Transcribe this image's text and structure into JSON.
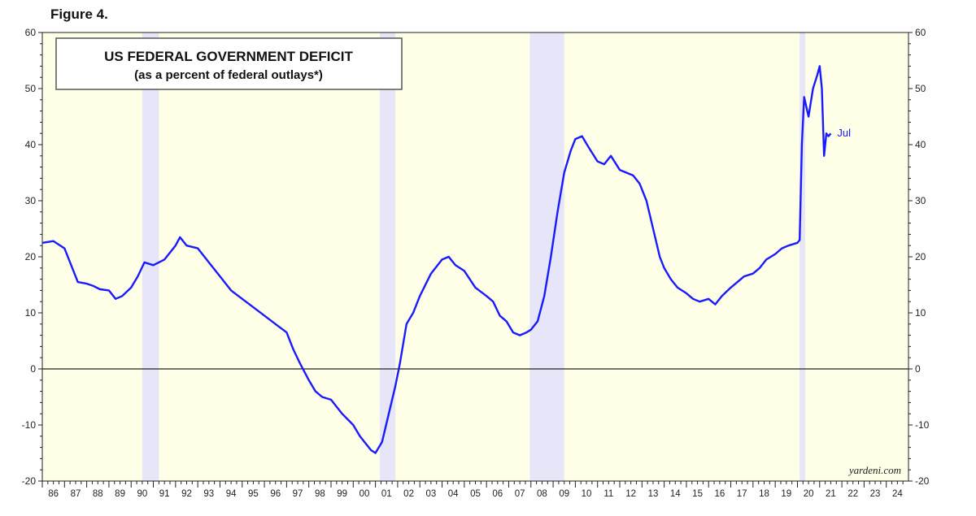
{
  "figure_label": "Figure 4.",
  "watermark": "yardeni.com",
  "chart_data": {
    "type": "line",
    "title": "US FEDERAL GOVERNMENT DEFICIT",
    "subtitle": "(as a percent of federal outlays*)",
    "ylim": [
      -20,
      60
    ],
    "y_ticks": [
      -20,
      -10,
      0,
      10,
      20,
      30,
      40,
      50,
      60
    ],
    "x_range": [
      1986,
      2025
    ],
    "x_tick_labels": [
      "86",
      "87",
      "88",
      "89",
      "90",
      "91",
      "92",
      "93",
      "94",
      "95",
      "96",
      "97",
      "98",
      "99",
      "00",
      "01",
      "02",
      "03",
      "04",
      "05",
      "06",
      "07",
      "08",
      "09",
      "10",
      "11",
      "12",
      "13",
      "14",
      "15",
      "16",
      "17",
      "18",
      "19",
      "20",
      "21",
      "22",
      "23",
      "24"
    ],
    "recessions": [
      [
        1990.5,
        1991.25
      ],
      [
        2001.2,
        2001.9
      ],
      [
        2007.95,
        2009.5
      ],
      [
        2020.1,
        2020.35
      ]
    ],
    "end_label": "Jul",
    "grid": false,
    "colors": {
      "background": "#ffffe8",
      "recession": "#e6e6f8",
      "line": "#1a1aff",
      "zero_line": "#222222"
    },
    "series": [
      {
        "x": [
          1986.0,
          1986.5,
          1987.0,
          1987.3,
          1987.6,
          1988.0,
          1988.3,
          1988.6,
          1989.0,
          1989.3,
          1989.6,
          1990.0,
          1990.3,
          1990.6,
          1991.0,
          1991.5,
          1992.0,
          1992.2,
          1992.5,
          1993.0,
          1993.5,
          1994.0,
          1994.5,
          1995.0,
          1995.5,
          1996.0,
          1996.5,
          1997.0,
          1997.3,
          1997.6,
          1998.0,
          1998.3,
          1998.6,
          1999.0,
          1999.5,
          2000.0,
          2000.3,
          2000.6,
          2000.8,
          2001.0,
          2001.3,
          2001.6,
          2001.9,
          2002.1,
          2002.4,
          2002.7,
          2003.0,
          2003.5,
          2004.0,
          2004.3,
          2004.6,
          2005.0,
          2005.5,
          2006.0,
          2006.3,
          2006.6,
          2006.9,
          2007.2,
          2007.5,
          2007.8,
          2008.0,
          2008.3,
          2008.6,
          2008.9,
          2009.2,
          2009.5,
          2009.8,
          2010.0,
          2010.3,
          2010.6,
          2011.0,
          2011.3,
          2011.6,
          2012.0,
          2012.3,
          2012.6,
          2012.9,
          2013.2,
          2013.5,
          2013.8,
          2014.0,
          2014.3,
          2014.6,
          2015.0,
          2015.3,
          2015.6,
          2016.0,
          2016.3,
          2016.6,
          2017.0,
          2017.3,
          2017.6,
          2018.0,
          2018.3,
          2018.6,
          2019.0,
          2019.3,
          2019.6,
          2020.0,
          2020.1,
          2020.2,
          2020.3,
          2020.5,
          2020.7,
          2020.9,
          2021.0,
          2021.1,
          2021.2,
          2021.3,
          2021.4,
          2021.5
        ],
        "values": [
          22.5,
          22.8,
          21.5,
          18.5,
          15.5,
          15.2,
          14.8,
          14.2,
          14.0,
          12.5,
          13.0,
          14.5,
          16.5,
          19.0,
          18.5,
          19.5,
          22.0,
          23.5,
          22.0,
          21.5,
          19.0,
          16.5,
          14.0,
          12.5,
          11.0,
          9.5,
          8.0,
          6.5,
          3.5,
          1.0,
          -2.0,
          -4.0,
          -5.0,
          -5.5,
          -8.0,
          -10.0,
          -12.0,
          -13.5,
          -14.5,
          -15.0,
          -13.0,
          -8.0,
          -3.0,
          1.0,
          8.0,
          10.0,
          13.0,
          17.0,
          19.5,
          20.0,
          18.5,
          17.5,
          14.5,
          13.0,
          12.0,
          9.5,
          8.5,
          6.5,
          6.0,
          6.5,
          7.0,
          8.5,
          13.0,
          20.0,
          28.0,
          35.0,
          39.0,
          41.0,
          41.5,
          39.5,
          37.0,
          36.5,
          38.0,
          35.5,
          35.0,
          34.5,
          33.0,
          30.0,
          25.0,
          20.0,
          18.0,
          16.0,
          14.5,
          13.5,
          12.5,
          12.0,
          12.5,
          11.5,
          13.0,
          14.5,
          15.5,
          16.5,
          17.0,
          18.0,
          19.5,
          20.5,
          21.5,
          22.0,
          22.5,
          23.0,
          40.0,
          48.5,
          45.0,
          50.0,
          52.5,
          54.0,
          50.0,
          38.0,
          42.0,
          41.5,
          42.0
        ]
      }
    ]
  }
}
